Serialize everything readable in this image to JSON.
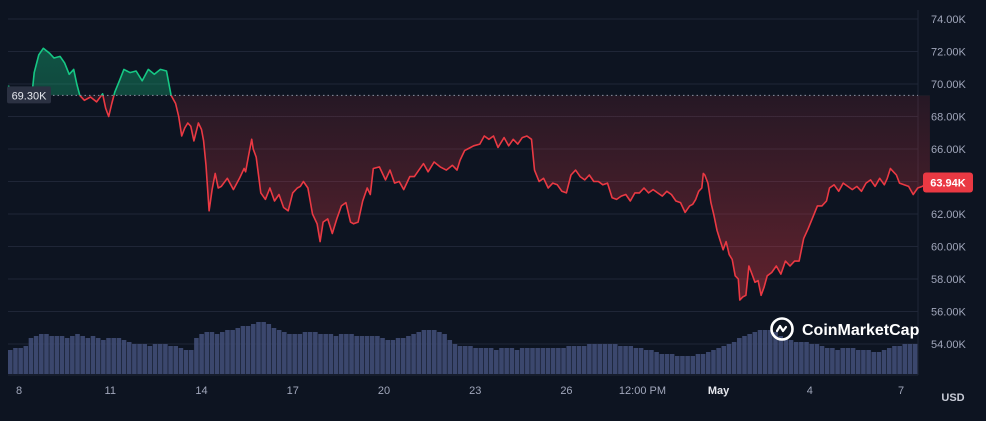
{
  "chart_data": {
    "type": "area",
    "ylim": [
      53000,
      75000
    ],
    "xlim": [
      0,
      30.3
    ],
    "y_ticks": [
      "74.00K",
      "72.00K",
      "70.00K",
      "68.00K",
      "66.00K",
      "64.00K",
      "62.00K",
      "60.00K",
      "58.00K",
      "56.00K",
      "54.00K"
    ],
    "y_tick_values": [
      74000,
      72000,
      70000,
      68000,
      66000,
      64000,
      62000,
      60000,
      58000,
      56000,
      54000
    ],
    "x_ticks": [
      {
        "t": 0.35,
        "label": "8"
      },
      {
        "t": 3.35,
        "label": "11"
      },
      {
        "t": 6.35,
        "label": "14"
      },
      {
        "t": 9.35,
        "label": "17"
      },
      {
        "t": 12.35,
        "label": "20"
      },
      {
        "t": 15.35,
        "label": "23"
      },
      {
        "t": 18.35,
        "label": "26"
      },
      {
        "t": 20.85,
        "label": "12:00 PM"
      },
      {
        "t": 23.35,
        "label": "May",
        "bold": true
      },
      {
        "t": 26.35,
        "label": "4"
      },
      {
        "t": 29.35,
        "label": "7"
      }
    ],
    "unit": "USD",
    "reference": {
      "value": 69300,
      "label": "69.30K"
    },
    "current": {
      "value": 63940,
      "label": "63.94K"
    },
    "colors": {
      "up": "#16c784",
      "down": "#ea3943",
      "volume": "#3e4a72",
      "background": "#0d1421",
      "grid": "#1f2637"
    },
    "series": [
      {
        "values": [
          [
            0.0,
            69900
          ],
          [
            0.15,
            69300
          ],
          [
            0.35,
            69400
          ],
          [
            0.6,
            69600
          ],
          [
            0.8,
            69800
          ],
          [
            0.85,
            70700
          ],
          [
            1.0,
            71800
          ],
          [
            1.15,
            72200
          ],
          [
            1.35,
            71900
          ],
          [
            1.5,
            71600
          ],
          [
            1.7,
            71700
          ],
          [
            1.85,
            71300
          ],
          [
            2.0,
            70600
          ],
          [
            2.15,
            70900
          ],
          [
            2.25,
            70000
          ],
          [
            2.35,
            69300
          ],
          [
            2.5,
            69000
          ],
          [
            2.7,
            69200
          ],
          [
            2.9,
            68900
          ],
          [
            3.1,
            69400
          ],
          [
            3.2,
            68500
          ],
          [
            3.3,
            68000
          ],
          [
            3.4,
            68800
          ],
          [
            3.5,
            69500
          ],
          [
            3.65,
            70200
          ],
          [
            3.8,
            70900
          ],
          [
            4.0,
            70700
          ],
          [
            4.2,
            70800
          ],
          [
            4.4,
            70200
          ],
          [
            4.6,
            70900
          ],
          [
            4.8,
            70600
          ],
          [
            5.0,
            70900
          ],
          [
            5.2,
            70800
          ],
          [
            5.35,
            69300
          ],
          [
            5.5,
            68800
          ],
          [
            5.6,
            68000
          ],
          [
            5.7,
            66800
          ],
          [
            5.8,
            67300
          ],
          [
            5.9,
            67600
          ],
          [
            6.0,
            67400
          ],
          [
            6.1,
            66500
          ],
          [
            6.25,
            67600
          ],
          [
            6.35,
            67200
          ],
          [
            6.42,
            66500
          ],
          [
            6.5,
            65000
          ],
          [
            6.6,
            62200
          ],
          [
            6.7,
            63500
          ],
          [
            6.8,
            64500
          ],
          [
            6.9,
            63600
          ],
          [
            7.0,
            63700
          ],
          [
            7.2,
            64200
          ],
          [
            7.4,
            63500
          ],
          [
            7.6,
            64200
          ],
          [
            7.75,
            64800
          ],
          [
            7.8,
            64600
          ],
          [
            7.9,
            65600
          ],
          [
            8.0,
            66600
          ],
          [
            8.05,
            66000
          ],
          [
            8.15,
            65500
          ],
          [
            8.3,
            63300
          ],
          [
            8.45,
            62900
          ],
          [
            8.6,
            63600
          ],
          [
            8.75,
            62800
          ],
          [
            8.9,
            63200
          ],
          [
            9.05,
            62400
          ],
          [
            9.2,
            62200
          ],
          [
            9.35,
            63300
          ],
          [
            9.5,
            63600
          ],
          [
            9.6,
            63700
          ],
          [
            9.7,
            64000
          ],
          [
            9.85,
            63600
          ],
          [
            10.0,
            62000
          ],
          [
            10.15,
            61400
          ],
          [
            10.25,
            60300
          ],
          [
            10.35,
            61500
          ],
          [
            10.5,
            61700
          ],
          [
            10.65,
            60800
          ],
          [
            10.8,
            61700
          ],
          [
            10.95,
            62500
          ],
          [
            11.1,
            62700
          ],
          [
            11.25,
            61500
          ],
          [
            11.35,
            61400
          ],
          [
            11.5,
            61500
          ],
          [
            11.65,
            62800
          ],
          [
            11.8,
            63600
          ],
          [
            11.9,
            63200
          ],
          [
            12.0,
            64800
          ],
          [
            12.2,
            64900
          ],
          [
            12.4,
            64100
          ],
          [
            12.55,
            64700
          ],
          [
            12.7,
            63900
          ],
          [
            12.85,
            64000
          ],
          [
            13.0,
            63500
          ],
          [
            13.2,
            64300
          ],
          [
            13.35,
            64300
          ],
          [
            13.5,
            64700
          ],
          [
            13.65,
            65100
          ],
          [
            13.8,
            64600
          ],
          [
            14.0,
            65200
          ],
          [
            14.2,
            64900
          ],
          [
            14.4,
            64700
          ],
          [
            14.6,
            65000
          ],
          [
            14.75,
            64700
          ],
          [
            14.85,
            65300
          ],
          [
            15.0,
            65900
          ],
          [
            15.1,
            66000
          ],
          [
            15.3,
            66200
          ],
          [
            15.5,
            66300
          ],
          [
            15.65,
            66800
          ],
          [
            15.8,
            66600
          ],
          [
            15.95,
            66800
          ],
          [
            16.1,
            66100
          ],
          [
            16.3,
            66700
          ],
          [
            16.45,
            66200
          ],
          [
            16.6,
            66600
          ],
          [
            16.75,
            66300
          ],
          [
            16.9,
            66700
          ],
          [
            17.05,
            66800
          ],
          [
            17.2,
            66600
          ],
          [
            17.3,
            64700
          ],
          [
            17.45,
            64000
          ],
          [
            17.6,
            64200
          ],
          [
            17.75,
            63600
          ],
          [
            17.9,
            63900
          ],
          [
            18.05,
            63800
          ],
          [
            18.2,
            63400
          ],
          [
            18.35,
            63300
          ],
          [
            18.5,
            64400
          ],
          [
            18.65,
            64700
          ],
          [
            18.8,
            64300
          ],
          [
            18.95,
            64100
          ],
          [
            19.1,
            64400
          ],
          [
            19.25,
            64000
          ],
          [
            19.4,
            64000
          ],
          [
            19.55,
            63800
          ],
          [
            19.7,
            63900
          ],
          [
            19.85,
            63000
          ],
          [
            20.0,
            62900
          ],
          [
            20.15,
            63100
          ],
          [
            20.3,
            63200
          ],
          [
            20.45,
            62800
          ],
          [
            20.6,
            63300
          ],
          [
            20.75,
            63300
          ],
          [
            20.9,
            63600
          ],
          [
            21.05,
            63300
          ],
          [
            21.2,
            63500
          ],
          [
            21.35,
            63300
          ],
          [
            21.5,
            63100
          ],
          [
            21.65,
            63400
          ],
          [
            21.8,
            63200
          ],
          [
            21.95,
            62800
          ],
          [
            22.1,
            62700
          ],
          [
            22.25,
            62100
          ],
          [
            22.4,
            62500
          ],
          [
            22.5,
            62600
          ],
          [
            22.6,
            62900
          ],
          [
            22.7,
            63400
          ],
          [
            22.8,
            63600
          ],
          [
            22.85,
            64500
          ],
          [
            22.9,
            64400
          ],
          [
            23.0,
            63900
          ],
          [
            23.1,
            62700
          ],
          [
            23.2,
            61900
          ],
          [
            23.3,
            61000
          ],
          [
            23.4,
            60400
          ],
          [
            23.5,
            59800
          ],
          [
            23.6,
            60300
          ],
          [
            23.7,
            59500
          ],
          [
            23.8,
            59200
          ],
          [
            23.9,
            58200
          ],
          [
            24.0,
            58000
          ],
          [
            24.05,
            56700
          ],
          [
            24.15,
            56900
          ],
          [
            24.25,
            57000
          ],
          [
            24.35,
            58800
          ],
          [
            24.45,
            58300
          ],
          [
            24.55,
            57800
          ],
          [
            24.65,
            57900
          ],
          [
            24.75,
            57000
          ],
          [
            24.85,
            57500
          ],
          [
            24.95,
            58200
          ],
          [
            25.1,
            58400
          ],
          [
            25.25,
            58800
          ],
          [
            25.4,
            58300
          ],
          [
            25.55,
            59100
          ],
          [
            25.7,
            58800
          ],
          [
            25.85,
            59100
          ],
          [
            26.0,
            59100
          ],
          [
            26.15,
            60500
          ],
          [
            26.3,
            61100
          ],
          [
            26.45,
            61800
          ],
          [
            26.6,
            62500
          ],
          [
            26.75,
            62500
          ],
          [
            26.9,
            62800
          ],
          [
            27.0,
            63600
          ],
          [
            27.15,
            63800
          ],
          [
            27.3,
            63400
          ],
          [
            27.45,
            63900
          ],
          [
            27.6,
            63700
          ],
          [
            27.75,
            63500
          ],
          [
            27.9,
            63700
          ],
          [
            28.05,
            63400
          ],
          [
            28.2,
            63900
          ],
          [
            28.35,
            64100
          ],
          [
            28.5,
            63700
          ],
          [
            28.65,
            64200
          ],
          [
            28.8,
            63800
          ],
          [
            28.9,
            64200
          ],
          [
            29.0,
            64800
          ],
          [
            29.1,
            64600
          ],
          [
            29.2,
            64400
          ],
          [
            29.3,
            63900
          ],
          [
            29.45,
            63800
          ],
          [
            29.6,
            63700
          ],
          [
            29.75,
            63200
          ],
          [
            29.9,
            63600
          ],
          [
            30.05,
            63700
          ],
          [
            30.2,
            63900
          ],
          [
            30.3,
            63940
          ]
        ]
      },
      {
        "name": "",
        "type": "volume",
        "values": [
          1.2,
          1.3,
          1.3,
          1.4,
          1.8,
          1.9,
          2.0,
          2.0,
          1.9,
          1.9,
          1.9,
          1.8,
          1.9,
          2.0,
          1.9,
          1.8,
          1.9,
          1.8,
          1.7,
          1.8,
          1.8,
          1.8,
          1.7,
          1.6,
          1.5,
          1.5,
          1.5,
          1.4,
          1.5,
          1.5,
          1.5,
          1.4,
          1.4,
          1.3,
          1.2,
          1.2,
          1.8,
          2.0,
          2.1,
          2.1,
          2.0,
          2.1,
          2.2,
          2.2,
          2.3,
          2.4,
          2.4,
          2.5,
          2.6,
          2.6,
          2.5,
          2.3,
          2.2,
          2.1,
          2.0,
          2.0,
          2.0,
          2.1,
          2.1,
          2.1,
          2.0,
          2.0,
          2.0,
          1.9,
          2.0,
          2.0,
          2.0,
          1.9,
          1.9,
          1.9,
          1.9,
          1.9,
          1.8,
          1.7,
          1.7,
          1.8,
          1.8,
          1.9,
          2.0,
          2.1,
          2.2,
          2.2,
          2.2,
          2.1,
          2.0,
          1.7,
          1.5,
          1.4,
          1.4,
          1.4,
          1.3,
          1.3,
          1.3,
          1.3,
          1.2,
          1.3,
          1.3,
          1.3,
          1.2,
          1.3,
          1.3,
          1.3,
          1.3,
          1.3,
          1.3,
          1.3,
          1.3,
          1.3,
          1.4,
          1.4,
          1.4,
          1.4,
          1.5,
          1.5,
          1.5,
          1.5,
          1.5,
          1.5,
          1.4,
          1.4,
          1.4,
          1.3,
          1.3,
          1.2,
          1.2,
          1.1,
          1.0,
          1.0,
          1.0,
          0.9,
          0.9,
          0.9,
          0.9,
          1.0,
          1.0,
          1.1,
          1.2,
          1.3,
          1.4,
          1.5,
          1.6,
          1.8,
          1.9,
          2.0,
          2.1,
          2.2,
          2.2,
          2.2,
          2.1,
          1.9,
          1.8,
          1.7,
          1.6,
          1.6,
          1.6,
          1.5,
          1.5,
          1.4,
          1.3,
          1.3,
          1.2,
          1.3,
          1.3,
          1.3,
          1.2,
          1.2,
          1.2,
          1.1,
          1.1,
          1.2,
          1.3,
          1.4,
          1.4,
          1.5,
          1.5,
          1.5
        ]
      }
    ]
  },
  "brand": {
    "name": "CoinMarketCap",
    "logo_icon": "coinmarketcap-logo-icon"
  }
}
